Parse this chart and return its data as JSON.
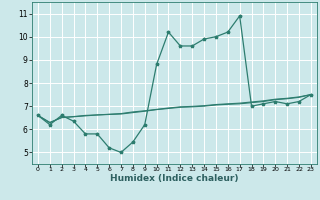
{
  "xlabel": "Humidex (Indice chaleur)",
  "x_values": [
    0,
    1,
    2,
    3,
    4,
    5,
    6,
    7,
    8,
    9,
    10,
    11,
    12,
    13,
    14,
    15,
    16,
    17,
    18,
    19,
    20,
    21,
    22,
    23
  ],
  "line1_y": [
    6.6,
    6.2,
    6.6,
    6.35,
    5.8,
    5.8,
    5.2,
    5.0,
    5.45,
    6.2,
    8.8,
    10.2,
    9.6,
    9.6,
    9.9,
    10.0,
    10.2,
    10.9,
    7.0,
    7.1,
    7.2,
    7.1,
    7.2,
    7.5
  ],
  "line2_y": [
    6.6,
    6.3,
    6.5,
    6.55,
    6.6,
    6.62,
    6.64,
    6.66,
    6.72,
    6.78,
    6.85,
    6.9,
    6.95,
    6.97,
    7.0,
    7.05,
    7.08,
    7.1,
    7.15,
    7.2,
    7.28,
    7.32,
    7.38,
    7.5
  ],
  "line3_y": [
    6.6,
    6.28,
    6.52,
    6.54,
    6.58,
    6.62,
    6.65,
    6.68,
    6.75,
    6.8,
    6.86,
    6.92,
    6.97,
    6.99,
    7.02,
    7.07,
    7.1,
    7.13,
    7.18,
    7.23,
    7.3,
    7.34,
    7.4,
    7.5
  ],
  "line_color": "#2d7d6f",
  "bg_color": "#cce8ea",
  "grid_color": "#ffffff",
  "ylim": [
    4.5,
    11.5
  ],
  "xlim": [
    -0.5,
    23.5
  ],
  "yticks": [
    5,
    6,
    7,
    8,
    9,
    10,
    11
  ],
  "xticks": [
    0,
    1,
    2,
    3,
    4,
    5,
    6,
    7,
    8,
    9,
    10,
    11,
    12,
    13,
    14,
    15,
    16,
    17,
    18,
    19,
    20,
    21,
    22,
    23
  ]
}
